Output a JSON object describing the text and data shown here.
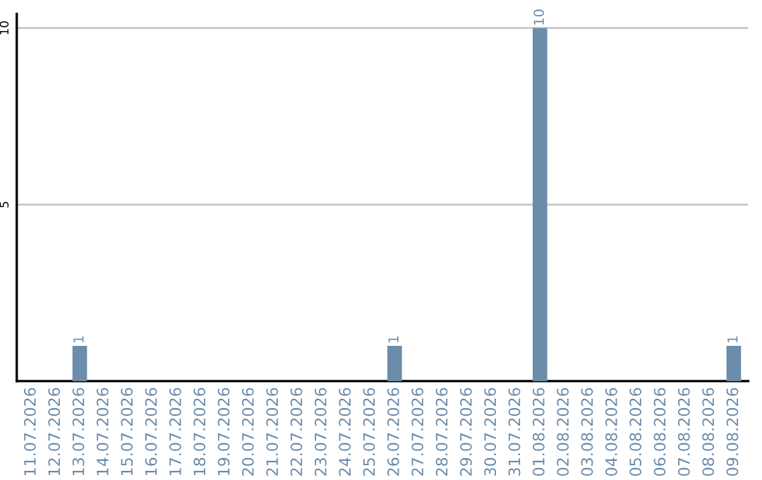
{
  "chart_data": {
    "type": "bar",
    "categories": [
      "11.07.2026",
      "12.07.2026",
      "13.07.2026",
      "14.07.2026",
      "15.07.2026",
      "16.07.2026",
      "17.07.2026",
      "18.07.2026",
      "19.07.2026",
      "20.07.2026",
      "21.07.2026",
      "22.07.2026",
      "23.07.2026",
      "24.07.2026",
      "25.07.2026",
      "26.07.2026",
      "27.07.2026",
      "28.07.2026",
      "29.07.2026",
      "30.07.2026",
      "31.07.2026",
      "01.08.2026",
      "02.08.2026",
      "03.08.2026",
      "04.08.2026",
      "05.08.2026",
      "06.08.2026",
      "07.08.2026",
      "08.08.2026",
      "09.08.2026"
    ],
    "values": [
      0,
      0,
      1,
      0,
      0,
      0,
      0,
      0,
      0,
      0,
      0,
      0,
      0,
      0,
      0,
      1,
      0,
      0,
      0,
      0,
      0,
      10,
      0,
      0,
      0,
      0,
      0,
      0,
      0,
      1
    ],
    "value_labels": [
      null,
      null,
      "1",
      null,
      null,
      null,
      null,
      null,
      null,
      null,
      null,
      null,
      null,
      null,
      null,
      "1",
      null,
      null,
      null,
      null,
      null,
      "10",
      null,
      null,
      null,
      null,
      null,
      null,
      null,
      "1"
    ],
    "color": "#6b8cab",
    "ylim": [
      0,
      10.4
    ],
    "yticks": [
      5,
      10
    ],
    "grid": "y",
    "legend": false
  }
}
